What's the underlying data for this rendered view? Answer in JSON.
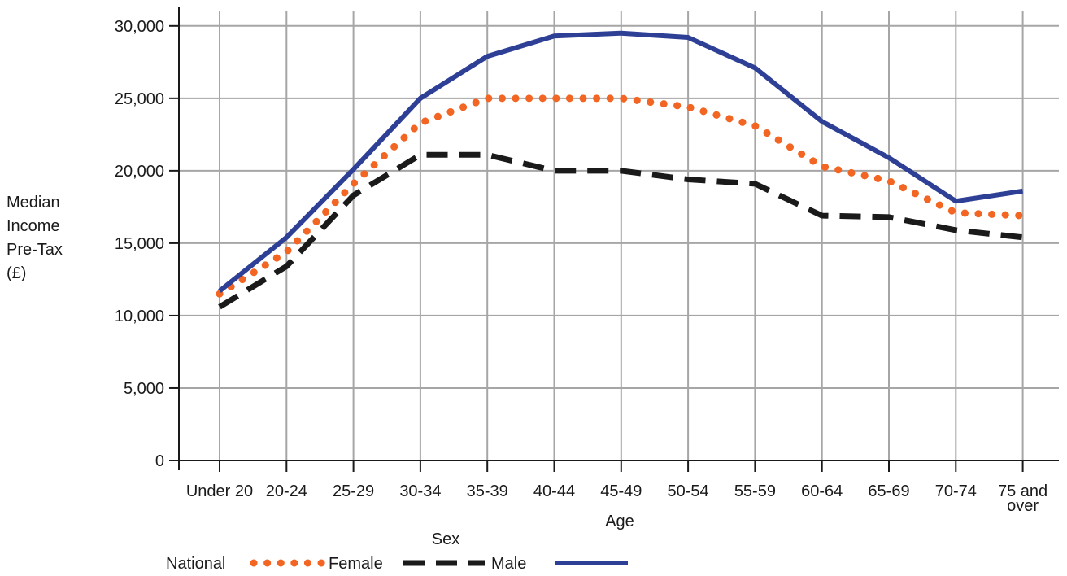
{
  "chart_data": {
    "type": "line",
    "xlabel": "Age",
    "ylabel": [
      "Median",
      "Income",
      "Pre-Tax",
      "(£)"
    ],
    "categories": [
      "Under 20",
      "20-24",
      "25-29",
      "30-34",
      "35-39",
      "40-44",
      "45-49",
      "50-54",
      "55-59",
      "60-64",
      "65-69",
      "70-74",
      "75 and over"
    ],
    "category_labels": [
      [
        "Under 20"
      ],
      [
        "20-24"
      ],
      [
        "25-29"
      ],
      [
        "30-34"
      ],
      [
        "35-39"
      ],
      [
        "40-44"
      ],
      [
        "45-49"
      ],
      [
        "50-54"
      ],
      [
        "55-59"
      ],
      [
        "60-64"
      ],
      [
        "65-69"
      ],
      [
        "70-74"
      ],
      [
        "75 and",
        "over"
      ]
    ],
    "ylim": [
      0,
      30000
    ],
    "yticks": [
      0,
      5000,
      10000,
      15000,
      20000,
      25000,
      30000
    ],
    "ytick_labels": [
      "0",
      "5,000",
      "10,000",
      "15,000",
      "20,000",
      "25,000",
      "30,000"
    ],
    "grid": true,
    "legend": {
      "title": "Sex",
      "position": "bottom-left"
    },
    "series": [
      {
        "name": "National",
        "style": "dotted",
        "color": "#f26522",
        "values": [
          11500,
          14400,
          19100,
          23300,
          25000,
          25000,
          25000,
          24400,
          23100,
          20300,
          19300,
          17100,
          16900
        ]
      },
      {
        "name": "Female",
        "style": "dashed",
        "color": "#1a1a1a",
        "values": [
          10600,
          13400,
          18300,
          21100,
          21100,
          20000,
          20000,
          19400,
          19100,
          16900,
          16800,
          15900,
          15400
        ]
      },
      {
        "name": "Male",
        "style": "solid",
        "color": "#2e3f96",
        "values": [
          11700,
          15400,
          20100,
          25000,
          27900,
          29300,
          29500,
          29200,
          27100,
          23400,
          20900,
          17900,
          18600
        ]
      }
    ]
  }
}
